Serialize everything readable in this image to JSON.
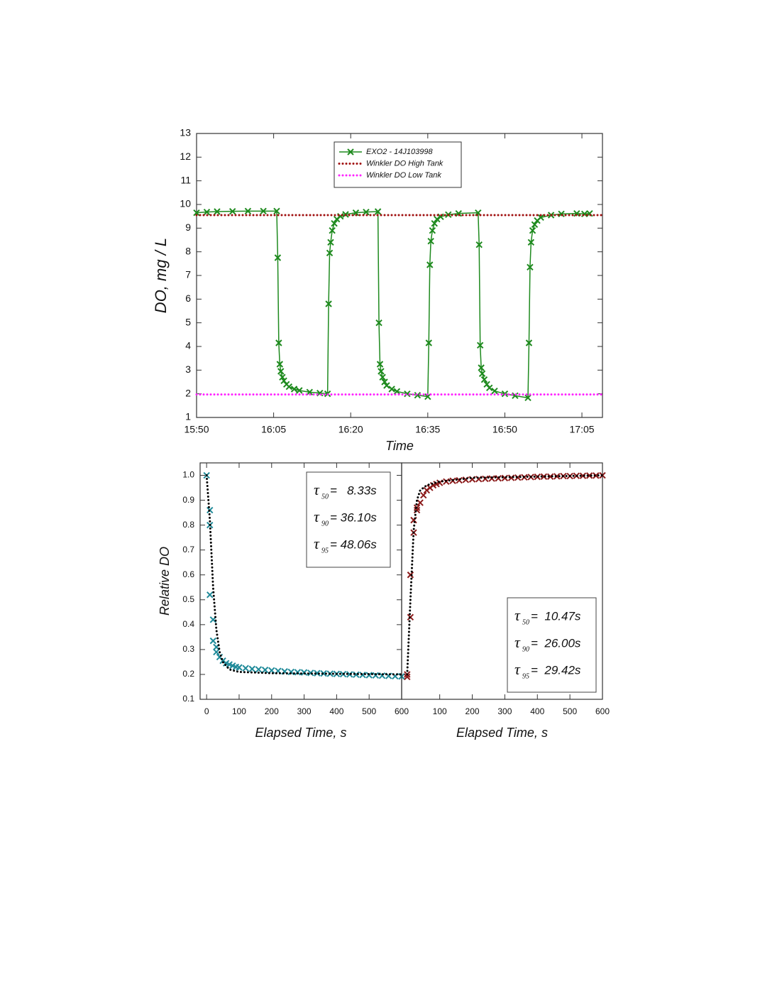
{
  "chart_data": [
    {
      "type": "line",
      "xlabel": "Time",
      "ylabel": "DO, mg / L",
      "legend": "upper center",
      "xlim": [
        950,
        1029
      ],
      "xticks": [
        {
          "value": 950,
          "label": "15:50"
        },
        {
          "value": 965,
          "label": "16:05"
        },
        {
          "value": 980,
          "label": "16:20"
        },
        {
          "value": 995,
          "label": "16:35"
        },
        {
          "value": 1010,
          "label": "16:50"
        },
        {
          "value": 1025,
          "label": "17:05"
        }
      ],
      "ylim": [
        1,
        13
      ],
      "yticks": [
        1,
        2,
        3,
        4,
        5,
        6,
        7,
        8,
        9,
        10,
        11,
        12,
        13
      ],
      "series": [
        {
          "name": "EXO2 - 14J103998",
          "color": "#1e8a1e",
          "line": "solid",
          "marker": "x",
          "x": [
            950,
            952,
            954,
            957,
            960,
            963,
            965.6,
            965.8,
            966,
            966.2,
            966.4,
            966.7,
            967,
            967.5,
            968,
            969,
            970,
            972,
            974,
            975.5,
            975.7,
            975.9,
            976.1,
            976.4,
            976.8,
            977.3,
            978,
            979,
            981,
            983,
            985.3,
            985.5,
            985.7,
            985.9,
            986.2,
            986.6,
            987,
            988,
            989,
            991,
            993,
            995,
            995.2,
            995.4,
            995.6,
            995.9,
            996.3,
            996.8,
            997.5,
            999,
            1001,
            1004.8,
            1005,
            1005.2,
            1005.4,
            1005.6,
            1006,
            1006.5,
            1007,
            1008,
            1010,
            1012,
            1014.5,
            1014.7,
            1014.9,
            1015.1,
            1015.4,
            1015.8,
            1016.3,
            1017,
            1019,
            1021,
            1024,
            1025.5,
            1026.5
          ],
          "values": [
            9.65,
            9.68,
            9.7,
            9.71,
            9.72,
            9.72,
            9.72,
            7.75,
            4.15,
            3.25,
            2.95,
            2.7,
            2.55,
            2.4,
            2.3,
            2.2,
            2.14,
            2.07,
            2.03,
            2.0,
            5.8,
            7.95,
            8.4,
            8.9,
            9.2,
            9.38,
            9.5,
            9.58,
            9.65,
            9.68,
            9.7,
            5.0,
            3.25,
            2.95,
            2.7,
            2.5,
            2.35,
            2.2,
            2.1,
            2.0,
            1.94,
            1.88,
            4.15,
            7.45,
            8.45,
            8.9,
            9.2,
            9.38,
            9.48,
            9.57,
            9.62,
            9.65,
            8.3,
            4.05,
            3.1,
            2.85,
            2.6,
            2.4,
            2.25,
            2.12,
            2.0,
            1.92,
            1.83,
            4.15,
            7.35,
            8.4,
            8.9,
            9.15,
            9.32,
            9.45,
            9.55,
            9.6,
            9.62,
            9.6,
            9.62
          ]
        },
        {
          "name": "Winkler DO High Tank",
          "color": "#a01010",
          "line": "dotted",
          "x": [
            950,
            1029
          ],
          "values": [
            9.55,
            9.55
          ]
        },
        {
          "name": "Winkler DO Low Tank",
          "color": "#ff22ff",
          "line": "dotted",
          "x": [
            950,
            1029
          ],
          "values": [
            1.97,
            1.97
          ]
        }
      ]
    },
    {
      "type": "scatter",
      "xlabel": "Elapsed Time, s",
      "ylabel": "Relative DO",
      "xlim": [
        -20,
        600
      ],
      "xticks": [
        0,
        100,
        200,
        300,
        400,
        500,
        600
      ],
      "ylim": [
        0.1,
        1.05
      ],
      "yticks": [
        0.1,
        0.2,
        0.3,
        0.4,
        0.5,
        0.6,
        0.7,
        0.8,
        0.9,
        {
          "value": 1,
          "label": "1.0"
        }
      ],
      "annotations": [
        {
          "symbol": "τ",
          "subscript": "50",
          "text": "=   8.33s"
        },
        {
          "symbol": "τ",
          "subscript": "90",
          "text": "= 36.10s"
        },
        {
          "symbol": "τ",
          "subscript": "95",
          "text": "= 48.06s"
        }
      ],
      "series": [
        {
          "color": "#1f8a99",
          "marker": "x",
          "x": [
            0,
            10,
            10,
            10,
            20,
            20,
            30,
            30,
            40,
            50,
            60,
            70,
            80,
            90,
            100,
            120,
            140,
            160,
            180,
            200,
            220,
            240,
            260,
            280,
            300,
            320,
            340,
            360,
            380,
            400,
            420,
            440,
            460,
            480,
            500,
            520,
            540,
            560,
            580,
            600
          ],
          "values": [
            1,
            0.86,
            0.8,
            0.52,
            0.42,
            0.335,
            0.31,
            0.29,
            0.27,
            0.255,
            0.245,
            0.24,
            0.235,
            0.23,
            0.228,
            0.225,
            0.222,
            0.22,
            0.218,
            0.216,
            0.214,
            0.212,
            0.21,
            0.209,
            0.208,
            0.206,
            0.205,
            0.204,
            0.203,
            0.202,
            0.201,
            0.2,
            0.199,
            0.198,
            0.197,
            0.196,
            0.195,
            0.194,
            0.193,
            0.192
          ]
        },
        {
          "color": "#000000",
          "line": "dotted",
          "x": [
            0,
            10,
            20,
            30,
            40,
            50,
            70,
            100,
            200,
            600
          ],
          "values": [
            1,
            0.82,
            0.55,
            0.38,
            0.29,
            0.25,
            0.22,
            0.21,
            0.205,
            0.2
          ]
        }
      ]
    },
    {
      "type": "scatter",
      "xlabel": "Elapsed Time, s",
      "xlim": [
        -17,
        600
      ],
      "xticks": [
        100,
        200,
        300,
        400,
        500,
        600
      ],
      "ylim": [
        0.1,
        1.05
      ],
      "annotations": [
        {
          "symbol": "τ",
          "subscript": "50",
          "text": "=  10.47s"
        },
        {
          "symbol": "τ",
          "subscript": "90",
          "text": "=  26.00s"
        },
        {
          "symbol": "τ",
          "subscript": "95",
          "text": "=  29.42s"
        }
      ],
      "series": [
        {
          "color": "#8b1a1a",
          "marker": "x",
          "x": [
            0,
            0,
            10,
            10,
            20,
            20,
            30,
            30,
            40,
            50,
            60,
            70,
            80,
            90,
            100,
            120,
            140,
            160,
            180,
            200,
            220,
            240,
            260,
            280,
            300,
            320,
            340,
            360,
            380,
            400,
            420,
            440,
            460,
            480,
            500,
            520,
            540,
            560,
            580,
            600
          ],
          "values": [
            0.19,
            0.2,
            0.43,
            0.6,
            0.77,
            0.82,
            0.86,
            0.87,
            0.89,
            0.92,
            0.94,
            0.95,
            0.96,
            0.965,
            0.97,
            0.975,
            0.978,
            0.98,
            0.982,
            0.984,
            0.985,
            0.986,
            0.987,
            0.988,
            0.989,
            0.99,
            0.991,
            0.992,
            0.993,
            0.994,
            0.995,
            0.995,
            0.996,
            0.997,
            0.997,
            0.998,
            0.998,
            0.999,
            0.999,
            1
          ]
        },
        {
          "color": "#000000",
          "line": "dotted",
          "x": [
            0,
            10,
            20,
            30,
            40,
            60,
            100,
            200,
            600
          ],
          "values": [
            0.2,
            0.5,
            0.78,
            0.9,
            0.94,
            0.96,
            0.975,
            0.99,
            1
          ]
        }
      ]
    }
  ]
}
